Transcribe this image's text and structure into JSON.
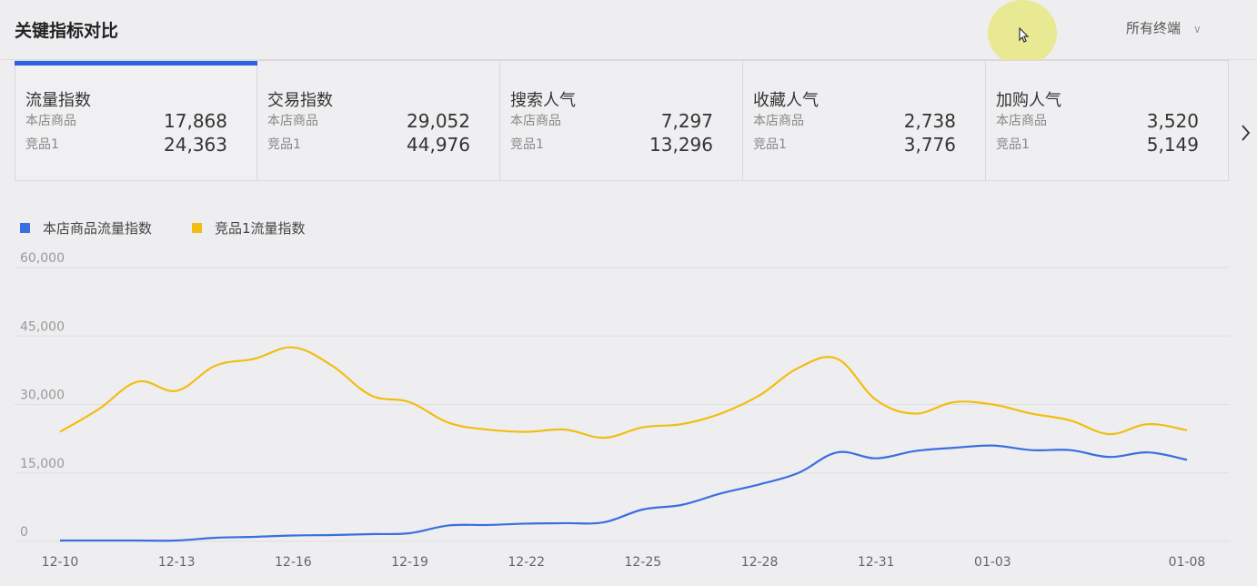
{
  "header": {
    "title": "关键指标对比",
    "filter_label": "所有终端",
    "chevron_icon": "chevron-down-icon"
  },
  "cards": [
    {
      "title": "流量指数",
      "row1_label": "本店商品",
      "row1_value": "17,868",
      "row2_label": "竞品1",
      "row2_value": "24,363",
      "active": true
    },
    {
      "title": "交易指数",
      "row1_label": "本店商品",
      "row1_value": "29,052",
      "row2_label": "竞品1",
      "row2_value": "44,976",
      "active": false
    },
    {
      "title": "搜索人气",
      "row1_label": "本店商品",
      "row1_value": "7,297",
      "row2_label": "竞品1",
      "row2_value": "13,296",
      "active": false
    },
    {
      "title": "收藏人气",
      "row1_label": "本店商品",
      "row1_value": "2,738",
      "row2_label": "竞品1",
      "row2_value": "3,776",
      "active": false
    },
    {
      "title": "加购人气",
      "row1_label": "本店商品",
      "row1_value": "3,520",
      "row2_label": "竞品1",
      "row2_value": "5,149",
      "active": false
    }
  ],
  "colors": {
    "accent": "#2d62e3",
    "series_own": "#3a6fe0",
    "series_competitor": "#f2bd12"
  },
  "chart_data": {
    "type": "line",
    "y_ticks": [
      "60,000",
      "45,000",
      "30,000",
      "15,000",
      "0"
    ],
    "ylim": [
      0,
      60000
    ],
    "x_tick_labels": [
      "12-10",
      "12-13",
      "12-16",
      "12-19",
      "12-22",
      "12-25",
      "12-28",
      "12-31",
      "01-03",
      "01-08"
    ],
    "x": [
      "12-10",
      "12-11",
      "12-12",
      "12-13",
      "12-14",
      "12-15",
      "12-16",
      "12-17",
      "12-18",
      "12-19",
      "12-20",
      "12-21",
      "12-22",
      "12-23",
      "12-24",
      "12-25",
      "12-26",
      "12-27",
      "12-28",
      "12-29",
      "12-30",
      "12-31",
      "01-01",
      "01-02",
      "01-03",
      "01-04",
      "01-05",
      "01-06",
      "01-07",
      "01-08"
    ],
    "series": [
      {
        "name": "本店商品流量指数",
        "color": "#3a6fe0",
        "values": [
          200,
          200,
          200,
          200,
          800,
          1000,
          1300,
          1400,
          1600,
          1800,
          3500,
          3600,
          3900,
          4000,
          4200,
          7000,
          8000,
          10500,
          12500,
          15000,
          19500,
          18200,
          19800,
          20500,
          21000,
          20000,
          20000,
          18500,
          19500,
          17868
        ]
      },
      {
        "name": "竞品1流量指数",
        "color": "#f2bd12",
        "values": [
          24000,
          29000,
          35000,
          33000,
          38500,
          40000,
          42500,
          38500,
          32000,
          30500,
          26000,
          24500,
          24000,
          24500,
          22700,
          25000,
          25700,
          28000,
          32000,
          38000,
          40000,
          31000,
          28000,
          30500,
          30000,
          28000,
          26500,
          23500,
          25700,
          24363
        ]
      }
    ],
    "grid": true,
    "legend": "top-left"
  }
}
